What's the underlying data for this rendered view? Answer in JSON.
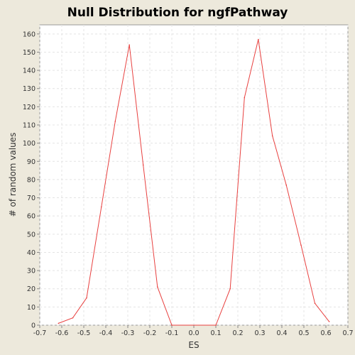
{
  "chart_data": {
    "type": "line",
    "title": "Null Distribution for ngfPathway",
    "xlabel": "ES",
    "ylabel": "# of random values",
    "xlim": [
      -0.7,
      0.7
    ],
    "ylim": [
      0,
      165
    ],
    "x_ticks": [
      "-0.7",
      "-0.6",
      "-0.5",
      "-0.4",
      "-0.3",
      "-0.2",
      "-0.1",
      "0.0",
      "0.1",
      "0.2",
      "0.3",
      "0.4",
      "0.5",
      "0.6",
      "0.7"
    ],
    "y_ticks": [
      "0",
      "10",
      "20",
      "30",
      "40",
      "50",
      "60",
      "70",
      "80",
      "90",
      "100",
      "110",
      "120",
      "130",
      "140",
      "150",
      "160"
    ],
    "grid": true,
    "series_color": "#e8403f",
    "series": [
      {
        "x": [
          -0.615,
          -0.55,
          -0.487,
          -0.42,
          -0.357,
          -0.293,
          -0.23,
          -0.165,
          -0.1,
          0.1,
          0.165,
          0.23,
          0.293,
          0.357,
          0.42,
          0.487,
          0.55,
          0.615
        ],
        "y": [
          1,
          4,
          15,
          65,
          112,
          154,
          88,
          21,
          0,
          0,
          20,
          125,
          157,
          104,
          77,
          44,
          12,
          2
        ]
      }
    ]
  }
}
